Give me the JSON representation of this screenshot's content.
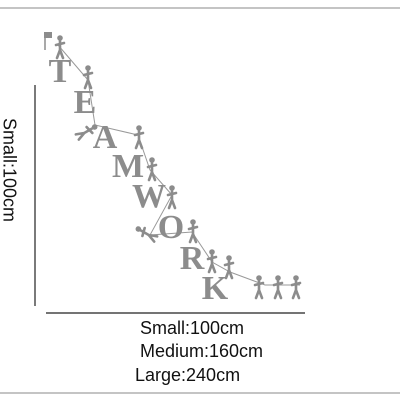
{
  "dimension_labels": {
    "vertical": "Small:100cm"
  },
  "decal": {
    "letters": [
      "T",
      "E",
      "A",
      "M",
      "W",
      "O",
      "R",
      "K"
    ]
  },
  "sizes": [
    "Small:100cm",
    "Medium:160cm",
    "Large:240cm"
  ]
}
